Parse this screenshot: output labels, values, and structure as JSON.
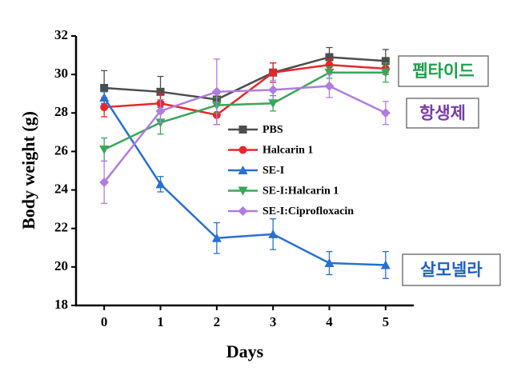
{
  "chart_data": {
    "type": "line",
    "xlabel": "Days",
    "ylabel": "Body weight (g)",
    "x": [
      0,
      1,
      2,
      3,
      4,
      5
    ],
    "xlim": [
      -0.5,
      5.5
    ],
    "xticks": [
      0,
      1,
      2,
      3,
      4,
      5
    ],
    "ylim": [
      18,
      32
    ],
    "yticks": [
      18,
      20,
      22,
      24,
      26,
      28,
      30,
      32
    ],
    "legend": "center",
    "series": [
      {
        "name": "PBS",
        "color": "#4d4d4d",
        "marker": "square",
        "values": [
          29.3,
          29.1,
          28.7,
          30.1,
          30.9,
          30.7
        ],
        "errors": [
          0.9,
          0.8,
          0.3,
          0.5,
          0.5,
          0.6
        ]
      },
      {
        "name": "Halcarin 1",
        "color": "#e8262a",
        "marker": "circle",
        "values": [
          28.3,
          28.5,
          27.9,
          30.1,
          30.5,
          30.3
        ],
        "errors": [
          0.5,
          0.5,
          0.5,
          0.5,
          0.3,
          0.3
        ]
      },
      {
        "name": "SE-I",
        "color": "#2a6fd0",
        "marker": "triangle",
        "values": [
          28.8,
          24.3,
          21.5,
          21.7,
          20.2,
          20.1
        ],
        "errors": [
          0.3,
          0.4,
          0.8,
          0.8,
          0.6,
          0.7
        ]
      },
      {
        "name": "SE-I:Halcarin 1",
        "color": "#3aa65a",
        "marker": "triangle-down",
        "values": [
          26.1,
          27.5,
          28.4,
          28.5,
          30.1,
          30.1
        ],
        "errors": [
          0.6,
          0.6,
          0.4,
          0.4,
          0.3,
          0.5
        ]
      },
      {
        "name": "SE-I:Ciprofloxacin",
        "color": "#b07ce0",
        "marker": "diamond",
        "values": [
          24.4,
          28.1,
          29.1,
          29.2,
          29.4,
          28.0
        ],
        "errors": [
          1.1,
          0.6,
          1.7,
          0.5,
          0.6,
          0.6
        ]
      }
    ],
    "annotations": [
      {
        "text": "펩타이드",
        "color": "#1f9e4b"
      },
      {
        "text": "항생제",
        "color": "#7a3aa8"
      },
      {
        "text": "살모넬라",
        "color": "#1f5fc0"
      }
    ]
  }
}
